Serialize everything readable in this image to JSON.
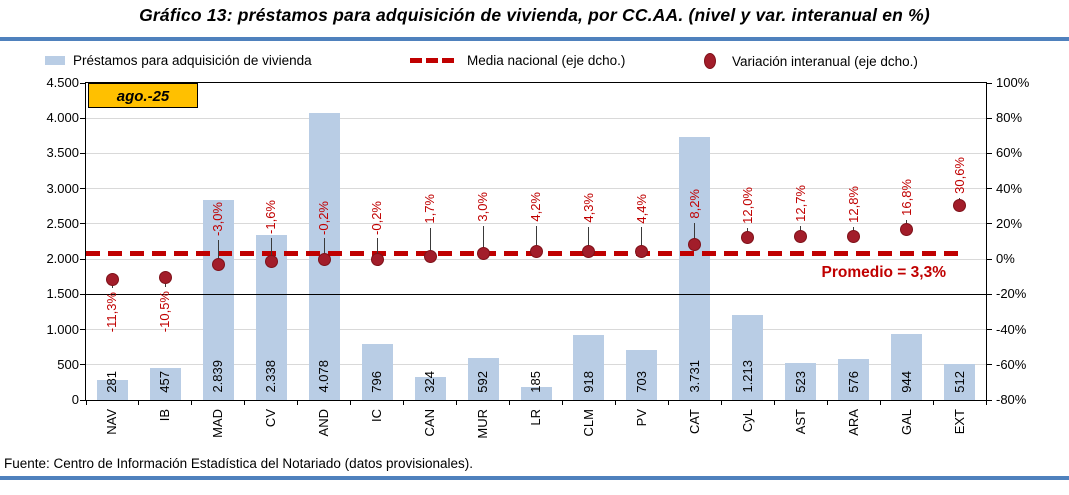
{
  "title": "Gráfico 13: préstamos para adquisición de vivienda, por CC.AA. (nivel y var. interanual en %)",
  "badge": "ago.-25",
  "legend": [
    {
      "label": "Préstamos para adquisición de vivienda",
      "marker": "bar-swatch"
    },
    {
      "label": "Media nacional (eje dcho.)",
      "marker": "dashed-line"
    },
    {
      "label": "Variación interanual (eje dcho.)",
      "marker": "dot"
    }
  ],
  "annotation": "Promedio = 3,3%",
  "footer": "Fuente: Centro de Información Estadística del Notariado (datos provisionales).",
  "colors": {
    "bar": "#B9CDE5",
    "dot": "#A21D2A",
    "dot_border": "#7E1119",
    "dashed_line": "#C00000",
    "pct_label": "#C00000",
    "promedio": "#C00000",
    "grid": "#D9D9D9",
    "rule_blue": "#4F81BD",
    "badge_bg": "#FFC000"
  },
  "chart_data": {
    "type": "bar",
    "subtype": "combo bar + scatter, dual axis",
    "title": "Gráfico 13: préstamos para adquisición de vivienda, por CC.AA. (nivel y var. interanual en %)",
    "period": "ago.-25",
    "grid": true,
    "legend_position": "top",
    "categories": [
      "NAV",
      "IB",
      "MAD",
      "CV",
      "AND",
      "IC",
      "CAN",
      "MUR",
      "LR",
      "CLM",
      "PV",
      "CAT",
      "CyL",
      "AST",
      "ARA",
      "GAL",
      "EXT"
    ],
    "series": [
      {
        "name": "Préstamos para adquisición de vivienda",
        "type": "bar",
        "axis": "left",
        "values": [
          281,
          457,
          2839,
          2338,
          4078,
          796,
          324,
          592,
          185,
          918,
          703,
          3731,
          1213,
          523,
          576,
          944,
          512
        ],
        "value_labels": [
          "281",
          "457",
          "2.839",
          "2.338",
          "4.078",
          "796",
          "324",
          "592",
          "185",
          "918",
          "703",
          "3.731",
          "1.213",
          "523",
          "576",
          "944",
          "512"
        ]
      },
      {
        "name": "Variación interanual (eje dcho.)",
        "type": "scatter",
        "axis": "right",
        "values_pct": [
          -11.3,
          -10.5,
          -3.0,
          -1.6,
          -0.2,
          -0.2,
          1.7,
          3.0,
          4.2,
          4.3,
          4.4,
          8.2,
          12.0,
          12.7,
          12.8,
          16.8,
          30.6
        ],
        "value_labels": [
          "-11,3%",
          "-10,5%",
          "-3,0%",
          "-1,6%",
          "-0,2%",
          "-0,2%",
          "1,7%",
          "3,0%",
          "4,2%",
          "4,3%",
          "4,4%",
          "8,2%",
          "12,0%",
          "12,7%",
          "12,8%",
          "16,8%",
          "30,6%"
        ],
        "label_side": [
          "below",
          "below",
          "above",
          "above",
          "above",
          "above",
          "above",
          "above",
          "above",
          "above",
          "above",
          "above",
          "above",
          "above",
          "above",
          "above",
          "above"
        ],
        "label_gap": [
          13,
          13,
          28,
          28,
          25,
          25,
          32,
          32,
          30,
          29,
          28,
          26,
          14,
          15,
          14,
          14,
          11
        ]
      },
      {
        "name": "Media nacional (eje dcho.)",
        "type": "line-dashed",
        "axis": "right",
        "value_pct": 3.3,
        "annotation": "Promedio = 3,3%"
      }
    ],
    "left_axis": {
      "min": 0,
      "max": 4500,
      "step": 500,
      "ticks": [
        "0",
        "500",
        "1.000",
        "1.500",
        "2.000",
        "2.500",
        "3.000",
        "3.500",
        "4.000",
        "4.500"
      ]
    },
    "right_axis": {
      "min": -80,
      "max": 100,
      "step": 20,
      "ticks": [
        "-80%",
        "-60%",
        "-40%",
        "-20%",
        "0%",
        "20%",
        "40%",
        "60%",
        "80%",
        "100%"
      ],
      "dark_line_at_pct": -20
    }
  }
}
